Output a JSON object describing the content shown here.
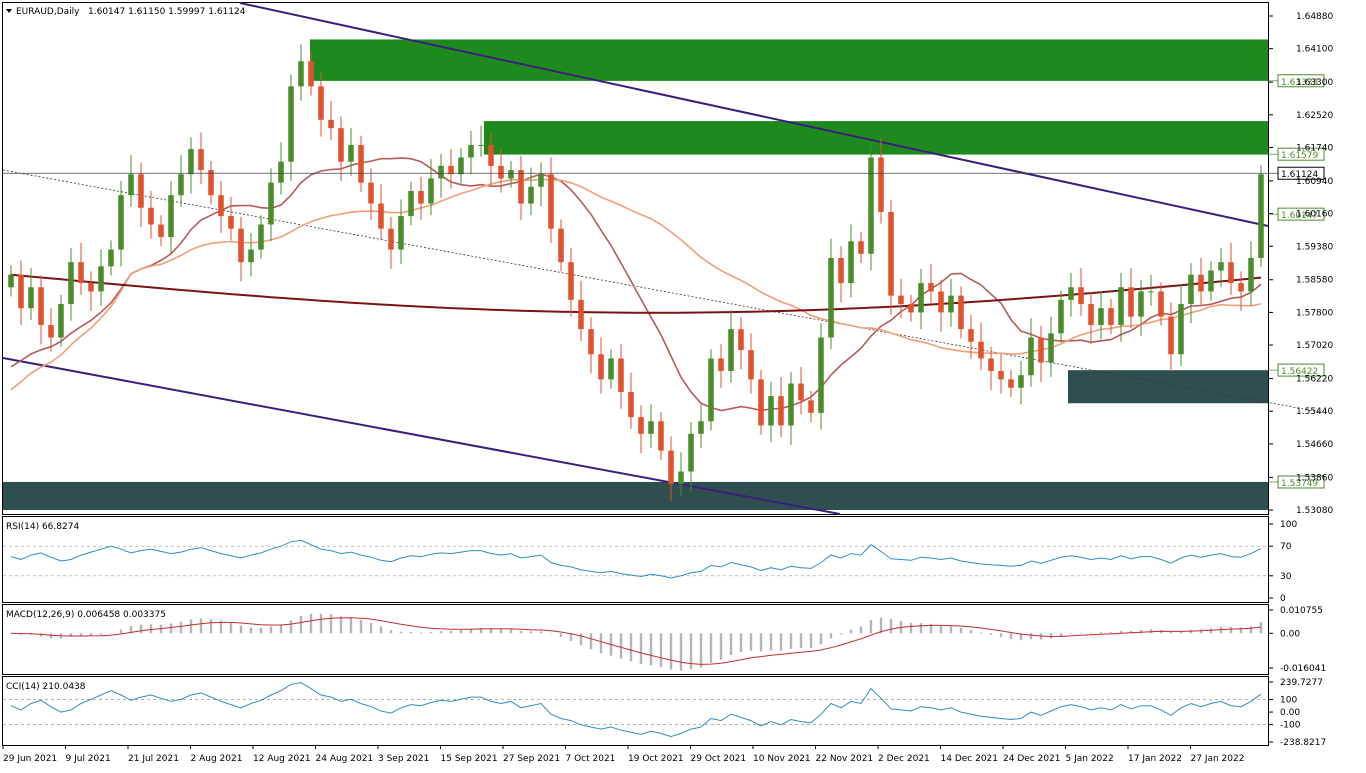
{
  "header": {
    "symbol": "EURAUD,Daily",
    "ohlc": "1.60147 1.61150 1.59997 1.61124"
  },
  "colors": {
    "bull": "#4a8c2a",
    "bear": "#e0522d",
    "zone_green": "#1e8a1e",
    "zone_dark": "#2f4f4f",
    "channel": "#3a1f7a",
    "ma_fast": "#b85a5a",
    "ma_mid": "#f0a078",
    "ma_slow": "#7a1414",
    "indicator_line": "#2e8fc4",
    "macd_signal": "#c0302a",
    "macd_hist": "#b4b4b4"
  },
  "chart_data": [
    {
      "panel": "price",
      "type": "candlestick",
      "ylim": [
        1.5308,
        1.6488
      ],
      "yticks": [
        "1.64880",
        "1.64100",
        "1.63300",
        "1.62520",
        "1.61740",
        "1.60940",
        "1.60160",
        "1.59380",
        "1.58580",
        "1.57800",
        "1.57020",
        "1.56220",
        "1.55440",
        "1.54660",
        "1.53860",
        "1.53080"
      ],
      "xlabels": [
        "29 Jun 2021",
        "9 Jul 2021",
        "21 Jul 2021",
        "2 Aug 2021",
        "12 Aug 2021",
        "24 Aug 2021",
        "3 Sep 2021",
        "15 Sep 2021",
        "27 Sep 2021",
        "7 Oct 2021",
        "19 Oct 2021",
        "29 Oct 2021",
        "10 Nov 2021",
        "22 Nov 2021",
        "2 Dec 2021",
        "14 Dec 2021",
        "24 Dec 2021",
        "5 Jan 2022",
        "17 Jan 2022",
        "27 Jan 2022"
      ],
      "closes": [
        1.587,
        1.579,
        1.584,
        1.575,
        1.572,
        1.58,
        1.59,
        1.585,
        1.583,
        1.589,
        1.593,
        1.606,
        1.611,
        1.603,
        1.599,
        1.596,
        1.606,
        1.611,
        1.617,
        1.612,
        1.606,
        1.601,
        1.598,
        1.59,
        1.593,
        1.599,
        1.609,
        1.614,
        1.632,
        1.638,
        1.632,
        1.624,
        1.622,
        1.614,
        1.618,
        1.609,
        1.604,
        1.598,
        1.593,
        1.601,
        1.607,
        1.604,
        1.61,
        1.613,
        1.611,
        1.615,
        1.618,
        1.618,
        1.613,
        1.61,
        1.612,
        1.604,
        1.608,
        1.611,
        1.598,
        1.59,
        1.581,
        1.574,
        1.568,
        1.562,
        1.567,
        1.559,
        1.553,
        1.549,
        1.552,
        1.545,
        1.537,
        1.54,
        1.549,
        1.552,
        1.567,
        1.564,
        1.574,
        1.569,
        1.562,
        1.551,
        1.558,
        1.551,
        1.561,
        1.557,
        1.554,
        1.572,
        1.591,
        1.585,
        1.595,
        1.592,
        1.615,
        1.602,
        1.582,
        1.58,
        1.578,
        1.585,
        1.583,
        1.578,
        1.582,
        1.574,
        1.571,
        1.567,
        1.564,
        1.562,
        1.56,
        1.563,
        1.572,
        1.566,
        1.573,
        1.581,
        1.584,
        1.58,
        1.575,
        1.579,
        1.575,
        1.584,
        1.577,
        1.583,
        1.583,
        1.577,
        1.568,
        1.58,
        1.587,
        1.583,
        1.588,
        1.59,
        1.585,
        1.583,
        1.591,
        1.611
      ],
      "series": [
        {
          "name": "",
          "values_first_last": [
            1.565,
            1.5783
          ]
        },
        {
          "name": "",
          "values_first_last": [
            1.5595,
            1.5762
          ]
        },
        {
          "name": "",
          "values_first_last": [
            1.587,
            1.582
          ]
        }
      ],
      "levels": [
        {
          "label": "1.63333",
          "value": 1.63333
        },
        {
          "label": "1.61579",
          "value": 1.61579
        },
        {
          "label": "1.61124",
          "value": 1.61124
        },
        {
          "label": "1.60147",
          "value": 1.60147
        },
        {
          "label": "1.56422",
          "value": 1.56422
        },
        {
          "label": "1.53749",
          "value": 1.53749
        }
      ],
      "zones": [
        {
          "from": 1.6333,
          "to": 1.6432
        },
        {
          "from": 1.6157,
          "to": 1.6237
        },
        {
          "from": 1.5563,
          "to": 1.5642
        },
        {
          "from": 1.5308,
          "to": 1.5375
        }
      ]
    },
    {
      "panel": "rsi",
      "type": "line",
      "title": "RSI(14) 66.8274",
      "ylim": [
        0,
        100
      ],
      "yticks": [
        "100",
        "70",
        "30",
        "0"
      ],
      "values": [
        56,
        52,
        58,
        61,
        55,
        50,
        52,
        58,
        62,
        66,
        70,
        66,
        61,
        64,
        66,
        63,
        60,
        62,
        66,
        68,
        64,
        60,
        57,
        54,
        58,
        61,
        66,
        70,
        76,
        78,
        72,
        66,
        64,
        60,
        62,
        58,
        55,
        51,
        49,
        54,
        57,
        56,
        59,
        61,
        60,
        62,
        64,
        64,
        60,
        58,
        60,
        54,
        56,
        58,
        48,
        44,
        42,
        38,
        36,
        34,
        36,
        33,
        31,
        29,
        32,
        30,
        27,
        30,
        34,
        36,
        44,
        42,
        48,
        45,
        42,
        37,
        41,
        38,
        43,
        41,
        40,
        48,
        58,
        54,
        60,
        58,
        72,
        63,
        53,
        52,
        51,
        55,
        54,
        52,
        54,
        50,
        48,
        46,
        45,
        44,
        43,
        44,
        50,
        47,
        51,
        55,
        57,
        55,
        52,
        54,
        52,
        57,
        53,
        56,
        56,
        52,
        47,
        54,
        58,
        55,
        58,
        60,
        56,
        55,
        60,
        66.8
      ]
    },
    {
      "panel": "macd",
      "type": "bar",
      "title": "MACD(12,26,9) 0.006458 0.003375",
      "ylim": [
        -0.016041,
        0.010755
      ],
      "yticks": [
        "0.010755",
        "0.00",
        "-0.016041"
      ]
    },
    {
      "panel": "cci",
      "type": "line",
      "title": "CCI(14) 210.0438",
      "ylim": [
        -238.8217,
        239.7277
      ],
      "yticks": [
        "239.7277",
        "100",
        "0.00",
        "-100",
        "-238.8217"
      ]
    }
  ]
}
